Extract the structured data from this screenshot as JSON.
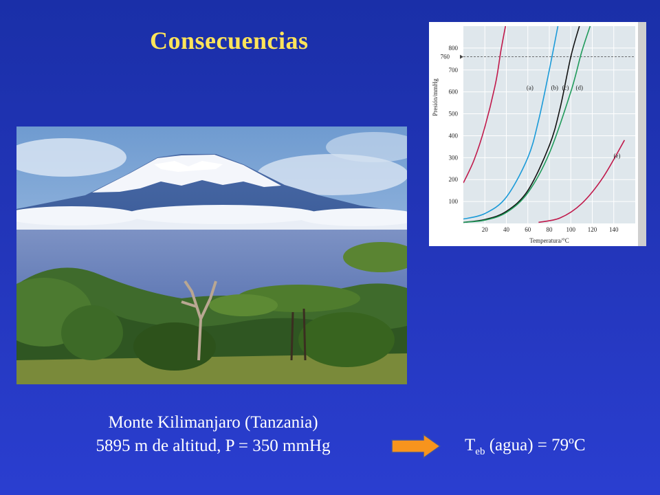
{
  "slide": {
    "title": "Consecuencias",
    "caption_line1": "Monte Kilimanjaro (Tanzania)",
    "caption_line2": "5895 m de altitud, P = 350 mmHg",
    "teb_T": "T",
    "teb_sub": "eb",
    "teb_rest": " (agua) = 79ºC",
    "arrow_color": "#f7941d",
    "title_color": "#ffe45a"
  },
  "photo": {
    "subject": "Mount Kilimanjaro landscape with acacia trees"
  },
  "chart_data": {
    "type": "line",
    "xlabel": "Temperatura/°C",
    "ylabel": "Presión/mmHg",
    "xlim": [
      0,
      160
    ],
    "ylim": [
      0,
      900
    ],
    "xticks": [
      20,
      40,
      60,
      80,
      100,
      120,
      140
    ],
    "yticks": [
      100,
      200,
      300,
      400,
      500,
      600,
      700,
      800
    ],
    "reference_line": {
      "y": 760,
      "label": "760",
      "style": "dashed"
    },
    "series": [
      {
        "name": "(a)",
        "color": "#c0184a",
        "x": [
          0,
          10,
          20,
          30,
          35,
          40
        ],
        "y": [
          185,
          290,
          440,
          640,
          790,
          920
        ]
      },
      {
        "name": "(b)",
        "color": "#1a9ad8",
        "x": [
          0,
          20,
          40,
          60,
          70,
          80,
          88
        ],
        "y": [
          20,
          45,
          120,
          300,
          470,
          700,
          900
        ]
      },
      {
        "name": "(c)",
        "color": "#111111",
        "x": [
          0,
          20,
          40,
          60,
          80,
          90,
          100,
          108
        ],
        "y": [
          5,
          18,
          55,
          150,
          355,
          525,
          760,
          900
        ]
      },
      {
        "name": "(d)",
        "color": "#1f9a5a",
        "x": [
          0,
          20,
          40,
          60,
          80,
          100,
          110,
          118
        ],
        "y": [
          5,
          15,
          50,
          140,
          320,
          600,
          780,
          900
        ]
      },
      {
        "name": "(e)",
        "color": "#c0184a",
        "x": [
          70,
          90,
          110,
          130,
          150
        ],
        "y": [
          5,
          25,
          90,
          210,
          380
        ]
      }
    ]
  }
}
